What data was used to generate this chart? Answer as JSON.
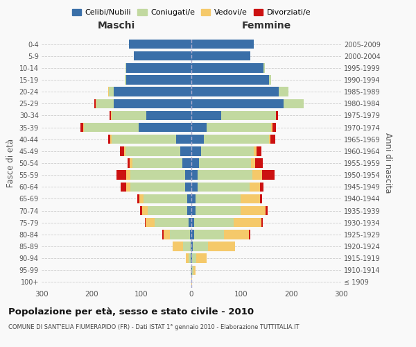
{
  "age_groups": [
    "100+",
    "95-99",
    "90-94",
    "85-89",
    "80-84",
    "75-79",
    "70-74",
    "65-69",
    "60-64",
    "55-59",
    "50-54",
    "45-49",
    "40-44",
    "35-39",
    "30-34",
    "25-29",
    "20-24",
    "15-19",
    "10-14",
    "5-9",
    "0-4"
  ],
  "birth_years": [
    "≤ 1909",
    "1910-1914",
    "1915-1919",
    "1920-1924",
    "1925-1929",
    "1930-1934",
    "1935-1939",
    "1940-1944",
    "1945-1949",
    "1950-1954",
    "1955-1959",
    "1960-1964",
    "1965-1969",
    "1970-1974",
    "1975-1979",
    "1980-1984",
    "1985-1989",
    "1990-1994",
    "1995-1999",
    "2000-2004",
    "2005-2009"
  ],
  "males": {
    "celibi": [
      0,
      0,
      2,
      2,
      3,
      5,
      8,
      8,
      12,
      12,
      18,
      22,
      30,
      105,
      90,
      155,
      155,
      130,
      130,
      115,
      125
    ],
    "coniugati": [
      0,
      1,
      4,
      15,
      40,
      68,
      80,
      88,
      110,
      110,
      100,
      110,
      130,
      110,
      70,
      35,
      10,
      3,
      2,
      0,
      0
    ],
    "vedovi": [
      0,
      1,
      5,
      20,
      12,
      18,
      10,
      8,
      8,
      8,
      5,
      3,
      2,
      2,
      1,
      2,
      2,
      0,
      0,
      0,
      0
    ],
    "divorziati": [
      0,
      0,
      0,
      0,
      3,
      2,
      5,
      5,
      12,
      20,
      5,
      8,
      5,
      5,
      3,
      2,
      0,
      0,
      0,
      0,
      0
    ]
  },
  "females": {
    "nubili": [
      0,
      2,
      2,
      3,
      5,
      5,
      8,
      8,
      12,
      12,
      15,
      20,
      25,
      30,
      60,
      185,
      175,
      155,
      145,
      118,
      125
    ],
    "coniugate": [
      0,
      2,
      8,
      30,
      60,
      80,
      90,
      90,
      105,
      110,
      105,
      105,
      130,
      130,
      110,
      40,
      20,
      5,
      2,
      0,
      0
    ],
    "vedove": [
      1,
      5,
      20,
      55,
      50,
      55,
      50,
      40,
      20,
      20,
      8,
      5,
      3,
      2,
      0,
      0,
      0,
      0,
      0,
      0,
      0
    ],
    "divorziate": [
      0,
      0,
      0,
      0,
      3,
      3,
      5,
      3,
      8,
      25,
      15,
      10,
      10,
      8,
      3,
      0,
      0,
      0,
      0,
      0,
      0
    ]
  },
  "xlim": 300,
  "colors": {
    "celibi_nubili": "#3a6fa8",
    "coniugati": "#c2d9a0",
    "vedovi": "#f5c96a",
    "divorziati": "#cc1111"
  },
  "bg_color": "#f9f9f9",
  "grid_color": "#cccccc",
  "title": "Popolazione per età, sesso e stato civile - 2010",
  "subtitle": "COMUNE DI SANT'ELIA FIUMERAPIDO (FR) - Dati ISTAT 1° gennaio 2010 - Elaborazione TUTTITALIA.IT",
  "ylabel_left": "Fasce di età",
  "ylabel_right": "Anni di nascita",
  "xlabel_maschi": "Maschi",
  "xlabel_femmine": "Femmine",
  "legend_labels": [
    "Celibi/Nubili",
    "Coniugati/e",
    "Vedovi/e",
    "Divorziati/e"
  ]
}
